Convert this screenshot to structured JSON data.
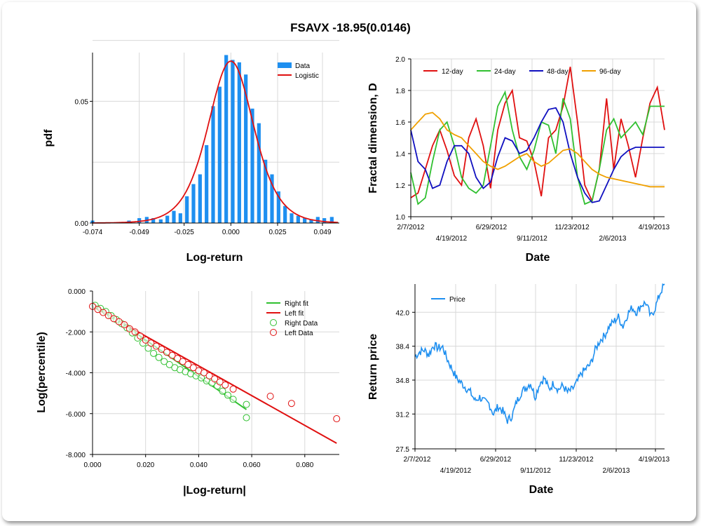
{
  "title": "FSAVX -18.95(0.0146)",
  "hist": {
    "xlabel": "Log-return",
    "ylabel": "pdf",
    "xticks": [
      "-0.074",
      "-0.049",
      "-0.025",
      "0.000",
      "0.025",
      "0.049"
    ],
    "yticks": [
      "0.00",
      "0.05"
    ],
    "legend": [
      "Data",
      "Logistic"
    ],
    "colors": {
      "bar": "#1e8ff0",
      "fit": "#e01010"
    }
  },
  "fractal": {
    "xlabel": "Date",
    "ylabel": "Fractal dimension, D",
    "xticks_top": [
      "2/7/2012",
      "6/29/2012",
      "11/23/2012",
      "4/19/2013"
    ],
    "xticks_bottom": [
      "4/19/2012",
      "9/11/2012",
      "2/6/2013"
    ],
    "yticks": [
      "1.0",
      "1.2",
      "1.4",
      "1.6",
      "1.8",
      "2.0"
    ],
    "legend": [
      "12-day",
      "24-day",
      "48-day",
      "96-day"
    ],
    "colors": [
      "#e01010",
      "#30c030",
      "#1010c0",
      "#f0a000"
    ]
  },
  "tail": {
    "xlabel": "|Log-return|",
    "ylabel": "Log(percentile)",
    "xticks": [
      "0.000",
      "0.020",
      "0.040",
      "0.060",
      "0.080"
    ],
    "yticks": [
      "0.000",
      "-2.000",
      "-4.000",
      "-6.000",
      "-8.000"
    ],
    "legend": [
      "Right fit",
      "Left fit",
      "Right Data",
      "Left Data"
    ],
    "colors": {
      "right": "#30c030",
      "left": "#e01010"
    }
  },
  "price": {
    "xlabel": "Date",
    "ylabel": "Return price",
    "xticks_top": [
      "2/7/2012",
      "6/29/2012",
      "11/23/2012",
      "4/19/2013"
    ],
    "xticks_bottom": [
      "4/19/2012",
      "9/11/2012",
      "2/6/2013"
    ],
    "yticks": [
      "27.5",
      "31.2",
      "34.8",
      "38.4",
      "42.0"
    ],
    "legend": [
      "Price"
    ],
    "color": "#1e8ff0"
  },
  "chart_data": [
    {
      "type": "bar",
      "title": "FSAVX -18.95(0.0146)",
      "xlabel": "Log-return",
      "ylabel": "pdf",
      "x": [
        -0.074,
        -0.0545,
        -0.049,
        -0.045,
        -0.0415,
        -0.0375,
        -0.034,
        -0.0305,
        -0.027,
        -0.0235,
        -0.02,
        -0.0165,
        -0.013,
        -0.0095,
        -0.006,
        -0.0025,
        0.001,
        0.0045,
        0.008,
        0.0115,
        0.015,
        0.0185,
        0.022,
        0.0255,
        0.029,
        0.0325,
        0.036,
        0.0395,
        0.043,
        0.0465,
        0.05,
        0.054
      ],
      "values": [
        0.001,
        0.001,
        0.002,
        0.0025,
        0.002,
        0.0015,
        0.003,
        0.005,
        0.004,
        0.011,
        0.016,
        0.02,
        0.032,
        0.048,
        0.056,
        0.069,
        0.067,
        0.066,
        0.061,
        0.047,
        0.041,
        0.026,
        0.02,
        0.013,
        0.007,
        0.004,
        0.003,
        0.002,
        0.0015,
        0.0025,
        0.002,
        0.0025
      ],
      "fit_name": "Logistic",
      "xlim": [
        -0.074,
        0.058
      ],
      "ylim": [
        0,
        0.07
      ],
      "grid": true,
      "legend_position": "top-right"
    },
    {
      "type": "line",
      "xlabel": "Date",
      "ylabel": "Fractal dimension, D",
      "x_start": "2/7/2012",
      "x_end": "4/19/2013",
      "ylim": [
        1.0,
        2.0
      ],
      "series": [
        {
          "name": "12-day",
          "values": [
            1.12,
            1.15,
            1.3,
            1.45,
            1.55,
            1.42,
            1.26,
            1.2,
            1.5,
            1.62,
            1.45,
            1.18,
            1.55,
            1.72,
            1.8,
            1.5,
            1.48,
            1.35,
            1.13,
            1.5,
            1.55,
            1.7,
            1.95,
            1.6,
            1.2,
            1.1,
            1.3,
            1.75,
            1.3,
            1.62,
            1.45,
            1.25,
            1.5,
            1.72,
            1.82,
            1.55
          ]
        },
        {
          "name": "24-day",
          "values": [
            1.28,
            1.08,
            1.12,
            1.35,
            1.55,
            1.6,
            1.45,
            1.25,
            1.18,
            1.15,
            1.2,
            1.45,
            1.7,
            1.79,
            1.55,
            1.38,
            1.3,
            1.42,
            1.6,
            1.58,
            1.4,
            1.75,
            1.62,
            1.25,
            1.08,
            1.1,
            1.3,
            1.55,
            1.62,
            1.5,
            1.55,
            1.6,
            1.52,
            1.7,
            1.7,
            1.7
          ]
        },
        {
          "name": "48-day",
          "values": [
            1.55,
            1.35,
            1.3,
            1.18,
            1.2,
            1.35,
            1.45,
            1.45,
            1.4,
            1.25,
            1.18,
            1.22,
            1.38,
            1.5,
            1.48,
            1.4,
            1.42,
            1.5,
            1.6,
            1.68,
            1.69,
            1.6,
            1.4,
            1.25,
            1.15,
            1.09,
            1.1,
            1.2,
            1.3,
            1.38,
            1.42,
            1.44,
            1.44,
            1.44,
            1.44,
            1.44
          ]
        },
        {
          "name": "96-day",
          "values": [
            1.55,
            1.6,
            1.65,
            1.66,
            1.62,
            1.55,
            1.52,
            1.5,
            1.45,
            1.4,
            1.35,
            1.32,
            1.3,
            1.32,
            1.35,
            1.38,
            1.4,
            1.35,
            1.32,
            1.34,
            1.38,
            1.42,
            1.43,
            1.4,
            1.35,
            1.3,
            1.27,
            1.25,
            1.24,
            1.23,
            1.22,
            1.21,
            1.2,
            1.19,
            1.19,
            1.19
          ]
        }
      ],
      "grid": true,
      "legend_position": "top"
    },
    {
      "type": "scatter",
      "xlabel": "|Log-return|",
      "ylabel": "Log(percentile)",
      "xlim": [
        0,
        0.093
      ],
      "ylim": [
        -8,
        0
      ],
      "series": [
        {
          "name": "Right Data",
          "x": [
            0.001,
            0.003,
            0.005,
            0.007,
            0.009,
            0.011,
            0.013,
            0.015,
            0.017,
            0.019,
            0.021,
            0.023,
            0.025,
            0.027,
            0.029,
            0.031,
            0.033,
            0.035,
            0.037,
            0.039,
            0.041,
            0.043,
            0.045,
            0.047,
            0.049,
            0.051,
            0.053,
            0.058,
            0.058
          ],
          "y": [
            -0.7,
            -0.85,
            -1.0,
            -1.2,
            -1.4,
            -1.6,
            -1.8,
            -2.05,
            -2.3,
            -2.55,
            -2.8,
            -3.05,
            -3.25,
            -3.45,
            -3.6,
            -3.75,
            -3.85,
            -3.95,
            -4.05,
            -4.15,
            -4.25,
            -4.4,
            -4.5,
            -4.65,
            -4.9,
            -5.1,
            -5.3,
            -5.55,
            -6.2
          ]
        },
        {
          "name": "Left Data",
          "x": [
            0.0,
            0.002,
            0.004,
            0.006,
            0.008,
            0.01,
            0.012,
            0.014,
            0.016,
            0.018,
            0.02,
            0.022,
            0.024,
            0.026,
            0.028,
            0.03,
            0.032,
            0.034,
            0.036,
            0.038,
            0.04,
            0.042,
            0.044,
            0.046,
            0.048,
            0.05,
            0.053,
            0.067,
            0.075,
            0.092
          ],
          "y": [
            -0.75,
            -0.9,
            -1.05,
            -1.2,
            -1.35,
            -1.5,
            -1.65,
            -1.85,
            -2.0,
            -2.2,
            -2.4,
            -2.55,
            -2.7,
            -2.85,
            -3.0,
            -3.15,
            -3.3,
            -3.45,
            -3.6,
            -3.75,
            -3.9,
            -4.0,
            -4.15,
            -4.3,
            -4.45,
            -4.6,
            -4.8,
            -5.15,
            -5.5,
            -6.25
          ]
        },
        {
          "name": "Right fit",
          "x": [
            0.0,
            0.058
          ],
          "y": [
            -0.6,
            -5.8
          ]
        },
        {
          "name": "Left fit",
          "x": [
            0.0,
            0.092
          ],
          "y": [
            -0.75,
            -7.45
          ]
        }
      ],
      "grid": true,
      "legend_position": "top-right"
    },
    {
      "type": "line",
      "xlabel": "Date",
      "ylabel": "Return price",
      "x_start": "2/7/2012",
      "x_end": "4/19/2013",
      "ylim": [
        27.5,
        45.0
      ],
      "series": [
        {
          "name": "Price",
          "values": [
            37.3,
            37.8,
            38.0,
            37.5,
            38.5,
            38.2,
            38.3,
            37.0,
            36.0,
            35.0,
            34.5,
            34.0,
            33.5,
            32.6,
            33.0,
            32.5,
            32.3,
            31.2,
            32.0,
            31.5,
            30.5,
            31.0,
            32.5,
            33.5,
            34.0,
            34.5,
            33.0,
            34.5,
            35.0,
            33.8,
            34.5,
            33.8,
            34.2,
            33.5,
            33.8,
            34.5,
            35.5,
            36.0,
            36.5,
            38.0,
            39.0,
            39.5,
            40.5,
            41.0,
            41.5,
            40.5,
            41.8,
            42.5,
            42.0,
            42.8,
            43.0,
            41.5,
            42.5,
            44.0,
            45.0
          ]
        }
      ],
      "grid": true,
      "legend_position": "top-left"
    }
  ]
}
